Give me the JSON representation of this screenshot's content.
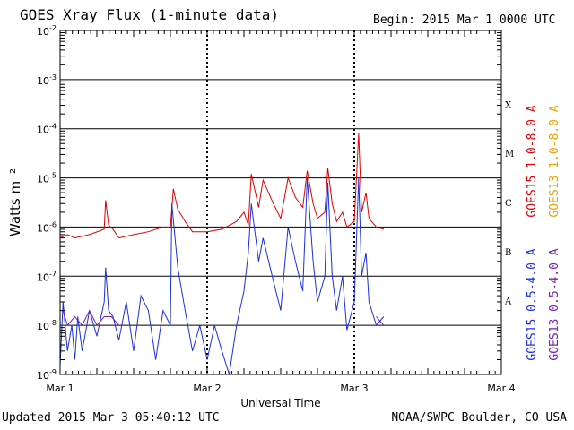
{
  "header": {
    "title": "GOES Xray Flux (1-minute data)",
    "begin": "Begin:  2015 Mar 1 0000 UTC"
  },
  "footer": {
    "updated": "Updated 2015 Mar  3 05:40:12 UTC",
    "credit": "NOAA/SWPC Boulder, CO USA"
  },
  "colors": {
    "goes15_long": "#e00000",
    "goes13_long": "#f0a000",
    "goes15_short": "#1a2fe0",
    "goes13_short": "#7a1fb0",
    "grid": "#000000"
  },
  "chart_data": {
    "type": "line",
    "title": "GOES Xray Flux (1-minute data)",
    "xlabel": "Universal Time",
    "ylabel": "Watts m⁻²",
    "y_scale": "log",
    "ylim": [
      1e-09,
      0.01
    ],
    "xlim": [
      0,
      3
    ],
    "x_ticks": [
      {
        "x": 0,
        "label": "Mar 1"
      },
      {
        "x": 1,
        "label": "Mar 2"
      },
      {
        "x": 2,
        "label": "Mar 3"
      },
      {
        "x": 3,
        "label": "Mar 4"
      }
    ],
    "y_ticks": [
      {
        "exp": -2,
        "label": "10",
        "sup": "-2"
      },
      {
        "exp": -3,
        "label": "10",
        "sup": "-3"
      },
      {
        "exp": -4,
        "label": "10",
        "sup": "-4"
      },
      {
        "exp": -5,
        "label": "10",
        "sup": "-5"
      },
      {
        "exp": -6,
        "label": "10",
        "sup": "-6"
      },
      {
        "exp": -7,
        "label": "10",
        "sup": "-7"
      },
      {
        "exp": -8,
        "label": "10",
        "sup": "-8"
      },
      {
        "exp": -9,
        "label": "10",
        "sup": "-9"
      }
    ],
    "flare_classes": [
      {
        "label": "X",
        "exp": -3.5
      },
      {
        "label": "M",
        "exp": -4.5
      },
      {
        "label": "C",
        "exp": -5.5
      },
      {
        "label": "B",
        "exp": -6.5
      },
      {
        "label": "A",
        "exp": -7.5
      }
    ],
    "grid": true,
    "legend": "right",
    "series": [
      {
        "name": "GOES15 1.0-8.0 A",
        "x": [
          0,
          0.05,
          0.1,
          0.2,
          0.3,
          0.31,
          0.33,
          0.36,
          0.4,
          0.5,
          0.6,
          0.7,
          0.75,
          0.77,
          0.8,
          0.85,
          0.9,
          1.0,
          1.1,
          1.2,
          1.25,
          1.28,
          1.3,
          1.35,
          1.38,
          1.45,
          1.5,
          1.55,
          1.6,
          1.65,
          1.68,
          1.72,
          1.75,
          1.8,
          1.82,
          1.85,
          1.88,
          1.92,
          1.95,
          2.0,
          2.03,
          2.05,
          2.08,
          2.1,
          2.15,
          2.2
        ],
        "values": [
          6e-07,
          7e-07,
          6e-07,
          7e-07,
          9e-07,
          3.5e-06,
          1.1e-06,
          9e-07,
          6e-07,
          7e-07,
          8e-07,
          1e-06,
          1e-06,
          6e-06,
          2.3e-06,
          1.3e-06,
          8e-07,
          8e-07,
          9e-07,
          1.3e-06,
          2e-06,
          1.1e-06,
          1.2e-05,
          2.5e-06,
          9e-06,
          3e-06,
          1.5e-06,
          1e-05,
          4e-06,
          2.5e-06,
          1.4e-05,
          3e-06,
          1.5e-06,
          2e-06,
          1.6e-05,
          3e-06,
          1.3e-06,
          2e-06,
          1e-06,
          1.3e-06,
          8e-05,
          2e-06,
          5e-06,
          1.5e-06,
          1e-06,
          9e-07
        ]
      },
      {
        "name": "GOES13 1.0-8.0 A",
        "x": [],
        "values": []
      },
      {
        "name": "GOES15 0.5-4.0 A",
        "x": [
          0,
          0.02,
          0.05,
          0.08,
          0.1,
          0.12,
          0.15,
          0.2,
          0.25,
          0.3,
          0.31,
          0.33,
          0.36,
          0.4,
          0.45,
          0.5,
          0.55,
          0.6,
          0.65,
          0.7,
          0.75,
          0.76,
          0.8,
          0.85,
          0.9,
          0.95,
          1.0,
          1.05,
          1.1,
          1.15,
          1.2,
          1.25,
          1.28,
          1.3,
          1.35,
          1.38,
          1.45,
          1.5,
          1.55,
          1.6,
          1.65,
          1.68,
          1.72,
          1.75,
          1.8,
          1.82,
          1.85,
          1.88,
          1.92,
          1.95,
          2.0,
          2.03,
          2.05,
          2.08,
          2.1,
          2.15,
          2.2
        ],
        "values": [
          1.5e-09,
          3e-08,
          3e-09,
          1e-08,
          2e-09,
          1.5e-08,
          3e-09,
          2e-08,
          6e-09,
          3e-08,
          1.5e-07,
          2e-08,
          1.5e-08,
          5e-09,
          3e-08,
          3e-09,
          4e-08,
          2e-08,
          2e-09,
          2e-08,
          1e-08,
          3e-06,
          1.5e-07,
          2e-08,
          3e-09,
          1e-08,
          2e-09,
          1e-08,
          3e-09,
          1e-09,
          1e-08,
          5e-08,
          3e-07,
          3e-06,
          2e-07,
          6e-07,
          8e-08,
          2e-08,
          1e-06,
          2e-07,
          5e-08,
          1e-05,
          2e-07,
          3e-08,
          1e-07,
          8e-06,
          1e-07,
          2e-08,
          1e-07,
          8e-09,
          3e-08,
          1e-05,
          1e-07,
          3e-07,
          3e-08,
          1e-08,
          1.5e-08
        ]
      },
      {
        "name": "GOES13 0.5-4.0 A",
        "x": [
          0.02,
          0.05,
          0.1,
          0.15,
          0.2,
          0.25,
          0.3,
          0.35,
          0.4,
          2.15,
          2.2
        ],
        "values": [
          2e-08,
          1e-08,
          1.5e-08,
          1e-08,
          2e-08,
          1e-08,
          1.5e-08,
          1.5e-08,
          1e-08,
          1.5e-08,
          1e-08
        ]
      }
    ]
  }
}
